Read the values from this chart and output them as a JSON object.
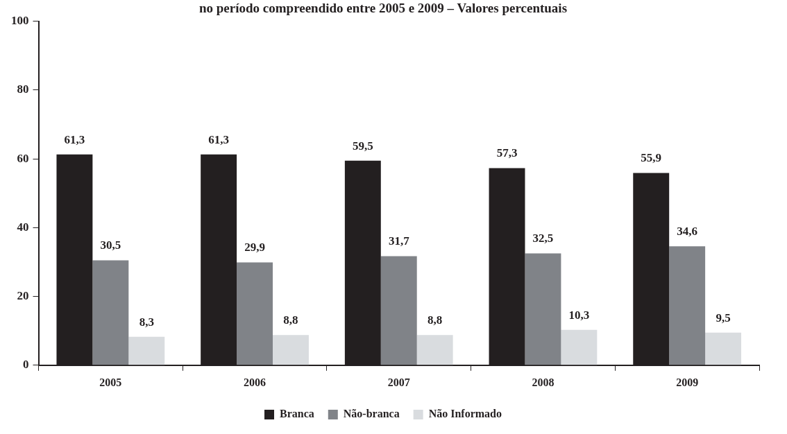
{
  "chart_data": {
    "type": "bar",
    "title": "no período compreendido entre 2005 e 2009 – Valores percentuais",
    "categories": [
      "2005",
      "2006",
      "2007",
      "2008",
      "2009"
    ],
    "series": [
      {
        "name": "Branca",
        "color": "#231f20",
        "values": [
          61.3,
          61.3,
          59.5,
          57.3,
          55.9
        ],
        "value_labels": [
          "61,3",
          "61,3",
          "59,5",
          "57,3",
          "55,9"
        ]
      },
      {
        "name": "Não-branca",
        "color": "#808388",
        "values": [
          30.5,
          29.9,
          31.7,
          32.5,
          34.6
        ],
        "value_labels": [
          "30,5",
          "29,9",
          "31,7",
          "32,5",
          "34,6"
        ]
      },
      {
        "name": "Não Informado",
        "color": "#d9dcdf",
        "values": [
          8.3,
          8.8,
          8.8,
          10.3,
          9.5
        ],
        "value_labels": [
          "8,3",
          "8,8",
          "8,8",
          "10,3",
          "9,5"
        ]
      }
    ],
    "ylim": [
      0,
      100
    ],
    "yticks": [
      0,
      20,
      40,
      60,
      80,
      100
    ],
    "grid": false,
    "legend": "bottom"
  }
}
